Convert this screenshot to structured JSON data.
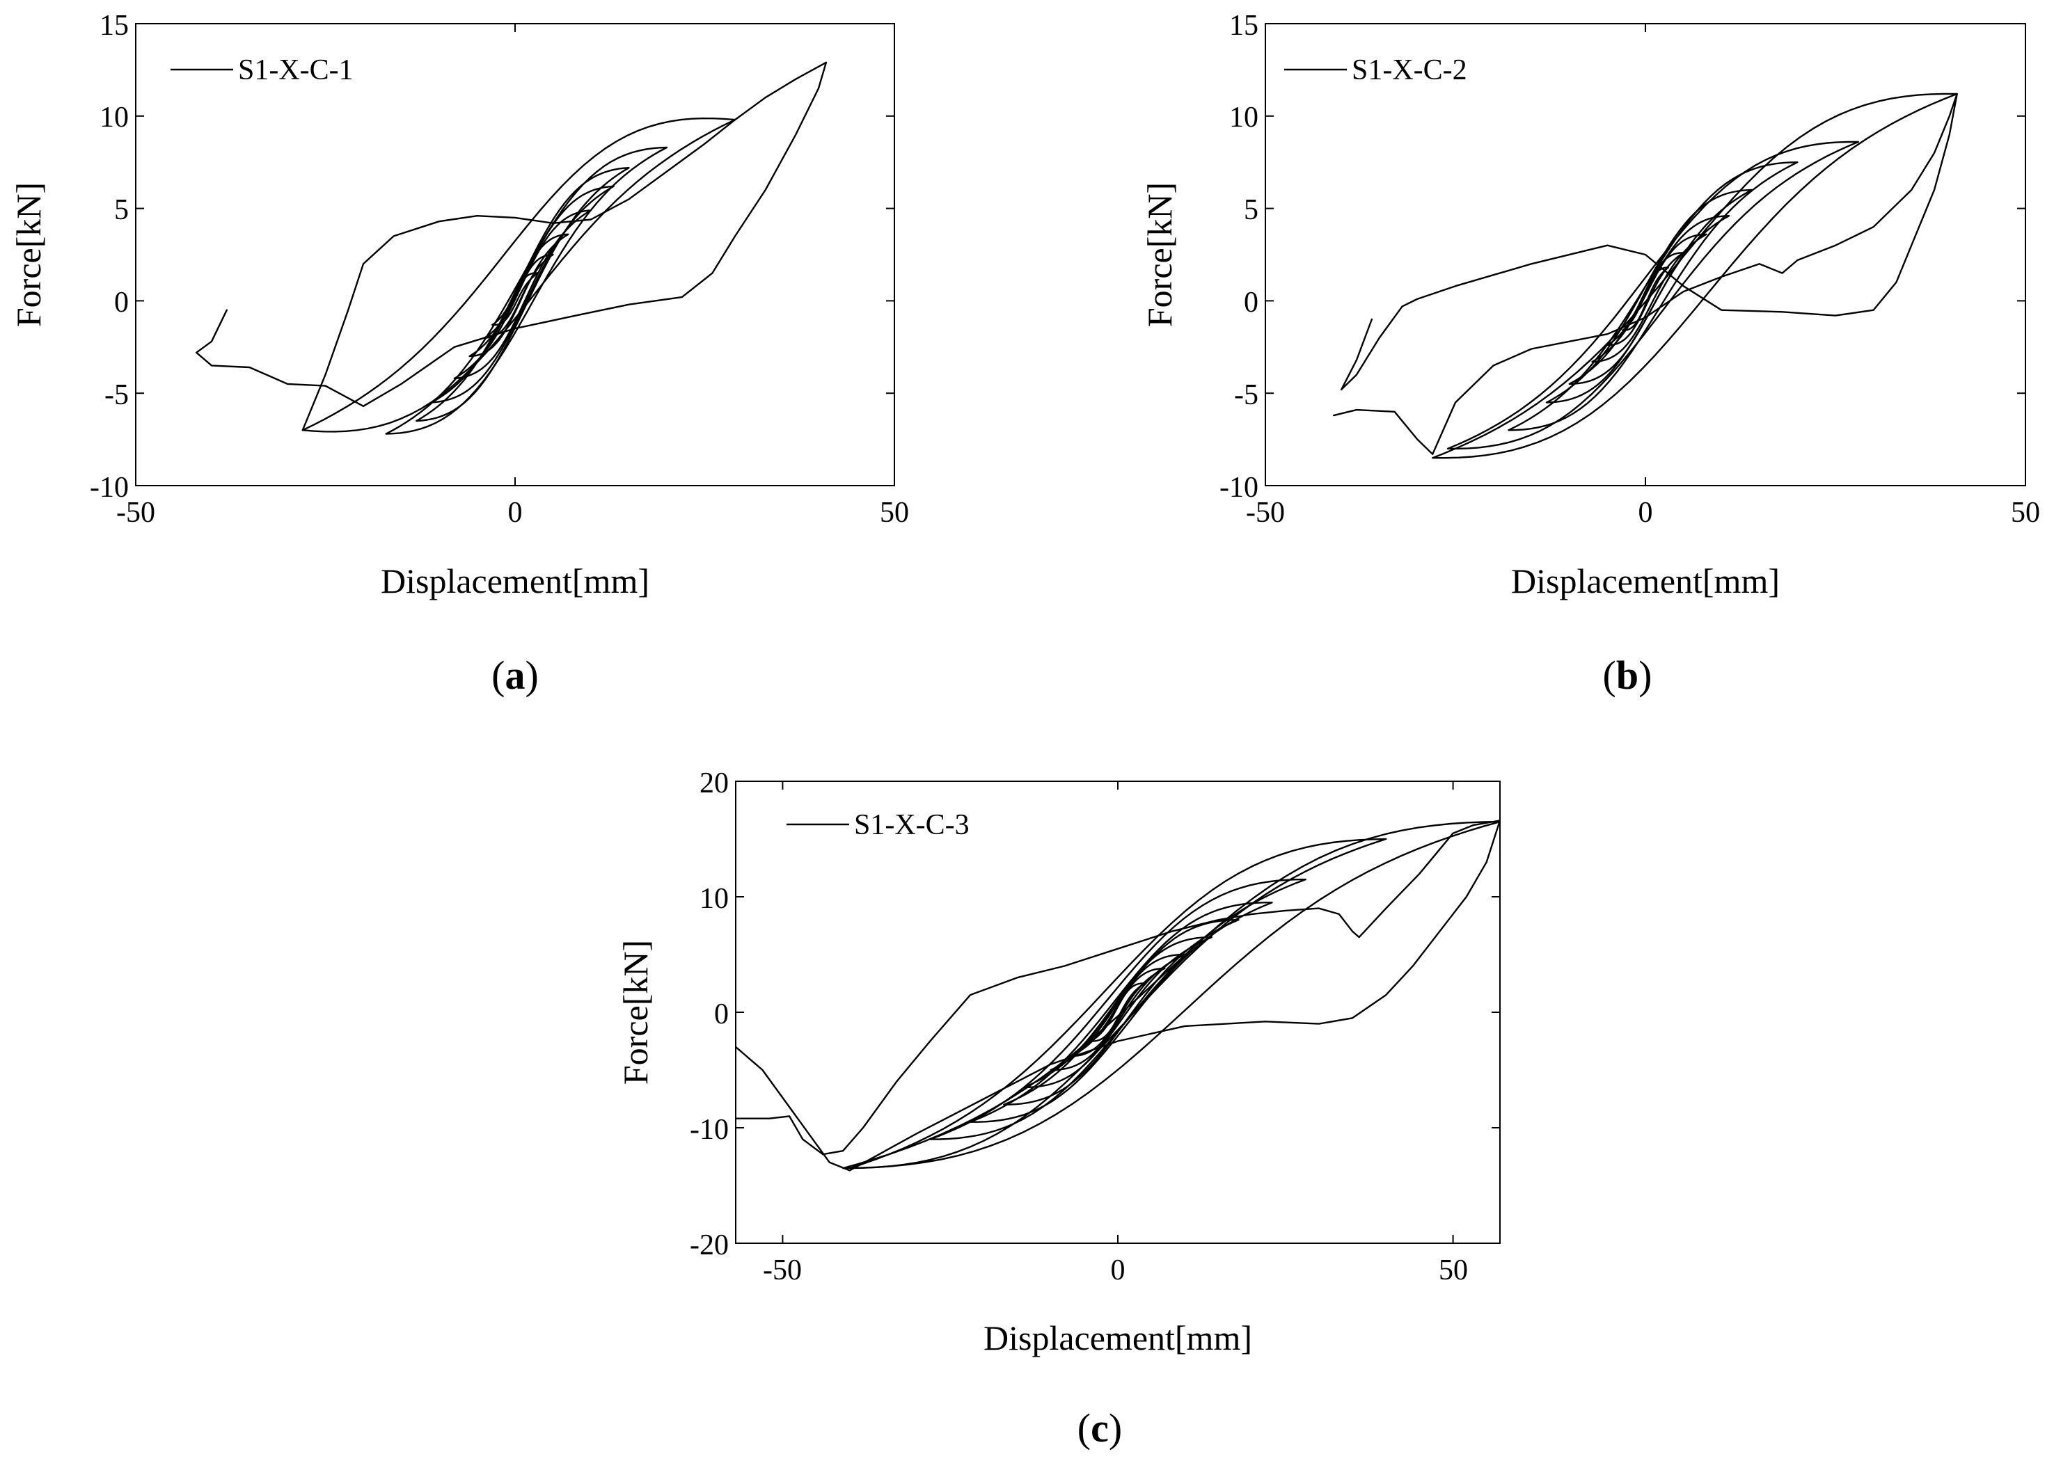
{
  "figure": {
    "captions": [
      {
        "open": "(",
        "letter": "a",
        "close": ")"
      },
      {
        "open": "(",
        "letter": "b",
        "close": ")"
      },
      {
        "open": "(",
        "letter": "c",
        "close": ")"
      }
    ]
  },
  "chart_data": [
    {
      "type": "line",
      "title": "",
      "xlabel": "Displacement[mm]",
      "ylabel": "Force[kN]",
      "xlim": [
        -50,
        50
      ],
      "ylim": [
        -10,
        15
      ],
      "xticks": [
        -50,
        0,
        50
      ],
      "yticks": [
        -10,
        -5,
        0,
        5,
        10,
        15
      ],
      "xtick_labels": [
        "-50",
        "0",
        "50"
      ],
      "ytick_labels": [
        "-10",
        "-5",
        "0",
        "5",
        "10",
        "15"
      ],
      "grid": false,
      "legend": "top-left",
      "caption": "(a)",
      "series": [
        {
          "name": "S1-X-C-1",
          "color": "#000000",
          "cycles": [
            {
              "amp_pos": 3,
              "amp_neg": -3,
              "f_pos": 1.5,
              "f_neg": -1.3,
              "pinch": 0.5
            },
            {
              "amp_pos": 5,
              "amp_neg": -4,
              "f_pos": 2.5,
              "f_neg": -2.0,
              "pinch": 0.6
            },
            {
              "amp_pos": 7,
              "amp_neg": -6,
              "f_pos": 3.6,
              "f_neg": -3.0,
              "pinch": 0.8
            },
            {
              "amp_pos": 10,
              "amp_neg": -8,
              "f_pos": 4.9,
              "f_neg": -4.2,
              "pinch": 1.0
            },
            {
              "amp_pos": 13,
              "amp_neg": -11,
              "f_pos": 6.2,
              "f_neg": -5.5,
              "pinch": 1.3
            },
            {
              "amp_pos": 15,
              "amp_neg": -13,
              "f_pos": 7.2,
              "f_neg": -6.5,
              "pinch": 1.6
            },
            {
              "amp_pos": 20,
              "amp_neg": -17,
              "f_pos": 8.3,
              "f_neg": -7.2,
              "pinch": 2.0
            },
            {
              "amp_pos": 29,
              "amp_neg": -28,
              "f_pos": 9.8,
              "f_neg": -7.0,
              "pinch": 3.5
            }
          ],
          "extra_path": [
            [
              -28,
              -7
            ],
            [
              -25,
              -4
            ],
            [
              -22,
              -0.5
            ],
            [
              -20,
              2
            ],
            [
              -16,
              3.5
            ],
            [
              -10,
              4.3
            ],
            [
              -5,
              4.6
            ],
            [
              0,
              4.5
            ],
            [
              5,
              4.2
            ],
            [
              10,
              4.4
            ],
            [
              15,
              5.5
            ],
            [
              20,
              7
            ],
            [
              25,
              8.5
            ],
            [
              29,
              9.8
            ],
            [
              33,
              11
            ],
            [
              37,
              12
            ],
            [
              41,
              12.9
            ],
            [
              40,
              11.5
            ],
            [
              37,
              9
            ],
            [
              33,
              6
            ],
            [
              29,
              3.5
            ],
            [
              26,
              1.5
            ],
            [
              22,
              0.2
            ],
            [
              15,
              -0.2
            ],
            [
              8,
              -0.8
            ],
            [
              0,
              -1.5
            ],
            [
              -8,
              -2.5
            ],
            [
              -15,
              -4.5
            ],
            [
              -20,
              -5.7
            ],
            [
              -25,
              -4.6
            ],
            [
              -30,
              -4.5
            ],
            [
              -35,
              -3.6
            ],
            [
              -40,
              -3.5
            ],
            [
              -42,
              -2.8
            ],
            [
              -40,
              -2.2
            ],
            [
              -38,
              -0.5
            ]
          ]
        }
      ]
    },
    {
      "type": "line",
      "title": "",
      "xlabel": "Displacement[mm]",
      "ylabel": "Force[kN]",
      "xlim": [
        -50,
        50
      ],
      "ylim": [
        -10,
        15
      ],
      "xticks": [
        -50,
        0,
        50
      ],
      "yticks": [
        -10,
        -5,
        0,
        5,
        10,
        15
      ],
      "xtick_labels": [
        "-50",
        "0",
        "50"
      ],
      "ytick_labels": [
        "-10",
        "-5",
        "0",
        "5",
        "10",
        "15"
      ],
      "grid": false,
      "legend": "top-left",
      "caption": "(b)",
      "series": [
        {
          "name": "S1-X-C-2",
          "color": "#000000",
          "cycles": [
            {
              "amp_pos": 3,
              "amp_neg": -3,
              "f_pos": 1.8,
              "f_neg": -1.6,
              "pinch": 0.5
            },
            {
              "amp_pos": 5,
              "amp_neg": -5,
              "f_pos": 2.6,
              "f_neg": -2.4,
              "pinch": 0.7
            },
            {
              "amp_pos": 8,
              "amp_neg": -7,
              "f_pos": 3.6,
              "f_neg": -3.3,
              "pinch": 0.9
            },
            {
              "amp_pos": 11,
              "amp_neg": -10,
              "f_pos": 4.6,
              "f_neg": -4.5,
              "pinch": 1.2
            },
            {
              "amp_pos": 14,
              "amp_neg": -13,
              "f_pos": 6.0,
              "f_neg": -5.5,
              "pinch": 1.5
            },
            {
              "amp_pos": 20,
              "amp_neg": -18,
              "f_pos": 7.5,
              "f_neg": -7.0,
              "pinch": 2.0
            },
            {
              "amp_pos": 28,
              "amp_neg": -26,
              "f_pos": 8.6,
              "f_neg": -8.0,
              "pinch": 2.5
            },
            {
              "amp_pos": 41,
              "amp_neg": -28,
              "f_pos": 11.2,
              "f_neg": -8.5,
              "pinch": 3.0
            }
          ],
          "extra_path": [
            [
              -41,
              -6.2
            ],
            [
              -38,
              -5.9
            ],
            [
              -33,
              -6.0
            ],
            [
              -30,
              -7.5
            ],
            [
              -28,
              -8.3
            ],
            [
              -25,
              -5.5
            ],
            [
              -20,
              -3.5
            ],
            [
              -15,
              -2.6
            ],
            [
              -10,
              -2.2
            ],
            [
              -5,
              -1.8
            ],
            [
              0,
              -0.9
            ],
            [
              5,
              0.5
            ],
            [
              10,
              1.3
            ],
            [
              15,
              2.0
            ],
            [
              18,
              1.5
            ],
            [
              20,
              2.2
            ],
            [
              25,
              3.0
            ],
            [
              30,
              4.0
            ],
            [
              35,
              6.0
            ],
            [
              38,
              8.0
            ],
            [
              40,
              10.0
            ],
            [
              41,
              11.2
            ],
            [
              40,
              9
            ],
            [
              38,
              6
            ],
            [
              35,
              3
            ],
            [
              33,
              1
            ],
            [
              30,
              -0.5
            ],
            [
              25,
              -0.8
            ],
            [
              18,
              -0.6
            ],
            [
              10,
              -0.5
            ],
            [
              5,
              0.8
            ],
            [
              0,
              2.5
            ],
            [
              -5,
              3
            ],
            [
              -15,
              2.0
            ],
            [
              -25,
              0.8
            ],
            [
              -30,
              0.1
            ],
            [
              -32,
              -0.3
            ],
            [
              -35,
              -2
            ],
            [
              -38,
              -4
            ],
            [
              -40,
              -4.8
            ],
            [
              -38,
              -3.2
            ],
            [
              -36,
              -1.0
            ]
          ]
        }
      ]
    },
    {
      "type": "line",
      "title": "",
      "xlabel": "Displacement[mm]",
      "ylabel": "Force[kN]",
      "xlim": [
        -57,
        57
      ],
      "ylim": [
        -20,
        20
      ],
      "xticks": [
        -50,
        0,
        50
      ],
      "yticks": [
        -20,
        -10,
        0,
        10,
        20
      ],
      "xtick_labels": [
        "-50",
        "0",
        "50"
      ],
      "ytick_labels": [
        "-20",
        "-10",
        "0",
        "10",
        "20"
      ],
      "grid": false,
      "legend": "top-left",
      "caption": "(c)",
      "series": [
        {
          "name": "S1-X-C-3",
          "color": "#000000",
          "cycles": [
            {
              "amp_pos": 4,
              "amp_neg": -4,
              "f_pos": 2.5,
              "f_neg": -2.5,
              "pinch": 0.8
            },
            {
              "amp_pos": 7,
              "amp_neg": -7,
              "f_pos": 3.8,
              "f_neg": -3.8,
              "pinch": 1.0
            },
            {
              "amp_pos": 10,
              "amp_neg": -10,
              "f_pos": 5.0,
              "f_neg": -5.0,
              "pinch": 1.4
            },
            {
              "amp_pos": 14,
              "amp_neg": -14,
              "f_pos": 6.5,
              "f_neg": -6.5,
              "pinch": 1.8
            },
            {
              "amp_pos": 18,
              "amp_neg": -17,
              "f_pos": 8.0,
              "f_neg": -8.0,
              "pinch": 2.2
            },
            {
              "amp_pos": 23,
              "amp_neg": -22,
              "f_pos": 9.5,
              "f_neg": -9.5,
              "pinch": 2.8
            },
            {
              "amp_pos": 28,
              "amp_neg": -28,
              "f_pos": 11.5,
              "f_neg": -11.0,
              "pinch": 3.2
            },
            {
              "amp_pos": 40,
              "amp_neg": -40,
              "f_pos": 15.0,
              "f_neg": -13.5,
              "pinch": 3.8
            },
            {
              "amp_pos": 57,
              "amp_neg": -41,
              "f_pos": 16.5,
              "f_neg": -13.5,
              "pinch": 4.0
            }
          ],
          "extra_path": [
            [
              -57,
              -9.2
            ],
            [
              -52,
              -9.2
            ],
            [
              -49,
              -9.0
            ],
            [
              -47,
              -11
            ],
            [
              -44,
              -12.3
            ],
            [
              -41,
              -12.0
            ],
            [
              -38,
              -10
            ],
            [
              -33,
              -6
            ],
            [
              -28,
              -2.5
            ],
            [
              -22,
              1.5
            ],
            [
              -15,
              3.0
            ],
            [
              -8,
              4.0
            ],
            [
              0,
              5.5
            ],
            [
              8,
              7.0
            ],
            [
              15,
              8.0
            ],
            [
              20,
              8.5
            ],
            [
              25,
              8.8
            ],
            [
              30,
              9.0
            ],
            [
              33,
              8.5
            ],
            [
              35,
              7.0
            ],
            [
              36,
              6.5
            ],
            [
              40,
              9
            ],
            [
              45,
              12
            ],
            [
              50,
              15.5
            ],
            [
              53,
              16.2
            ],
            [
              57,
              16.6
            ],
            [
              55,
              13
            ],
            [
              52,
              10
            ],
            [
              48,
              7
            ],
            [
              44,
              4
            ],
            [
              40,
              1.5
            ],
            [
              35,
              -0.5
            ],
            [
              30,
              -1.0
            ],
            [
              22,
              -0.8
            ],
            [
              10,
              -1.2
            ],
            [
              0,
              -2.5
            ],
            [
              -10,
              -4.5
            ],
            [
              -20,
              -7.5
            ],
            [
              -30,
              -10.5
            ],
            [
              -40,
              -13.7
            ],
            [
              -43,
              -13.0
            ],
            [
              -48,
              -9
            ],
            [
              -53,
              -5
            ],
            [
              -57,
              -3.0
            ]
          ]
        }
      ]
    }
  ]
}
